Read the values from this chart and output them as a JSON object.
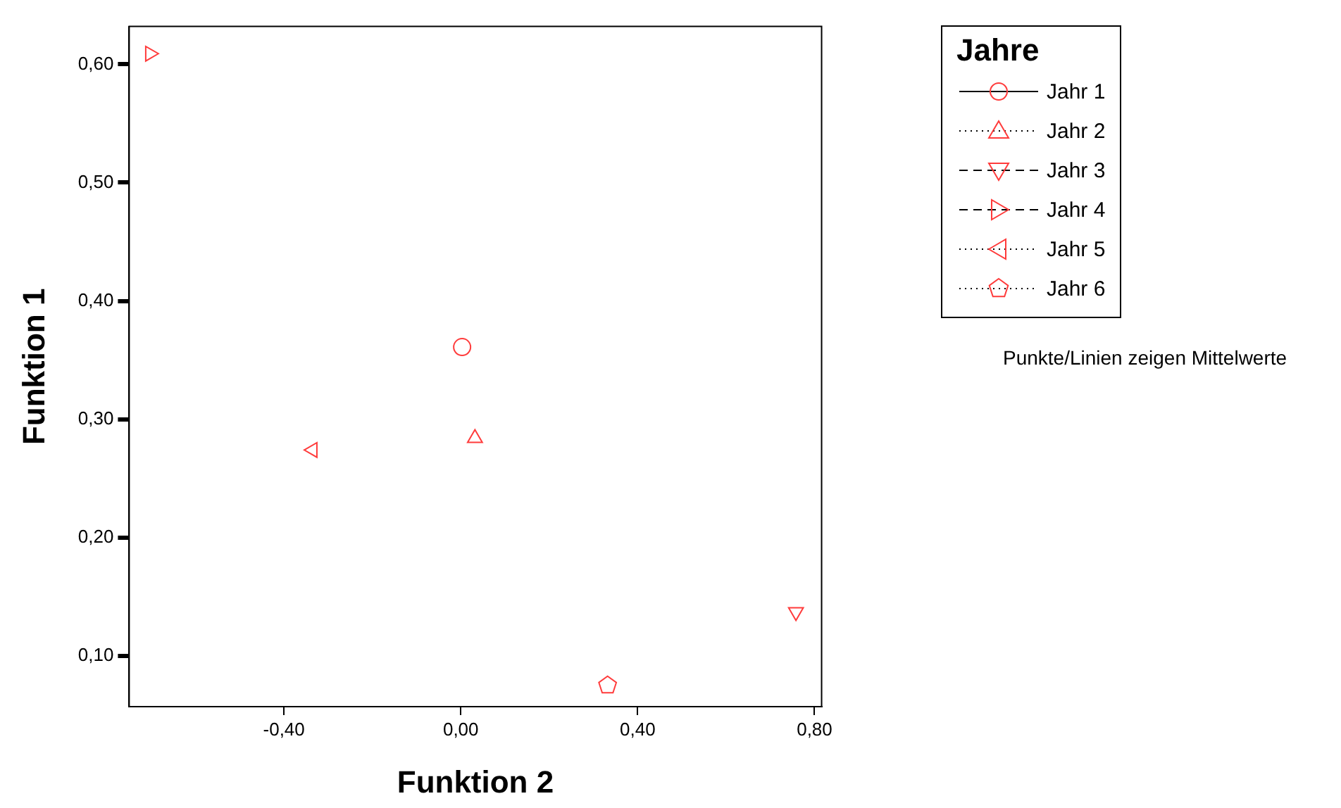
{
  "chart_data": {
    "type": "scatter",
    "xlabel": "Funktion 2",
    "ylabel": "Funktion 1",
    "legend_title": "Jahre",
    "legend": "right",
    "grid": false,
    "xlim": [
      -0.75,
      0.816
    ],
    "ylim": [
      0.057,
      0.632
    ],
    "xticks": [
      {
        "value": -0.4,
        "label": "-0,40"
      },
      {
        "value": 0,
        "label": "0,00"
      },
      {
        "value": 0.4,
        "label": "0,40"
      },
      {
        "value": 0.8,
        "label": "0,80"
      }
    ],
    "yticks": [
      {
        "value": 0.1,
        "label": "0,10"
      },
      {
        "value": 0.2,
        "label": "0,20"
      },
      {
        "value": 0.3,
        "label": "0,30"
      },
      {
        "value": 0.4,
        "label": "0,40"
      },
      {
        "value": 0.5,
        "label": "0,50"
      },
      {
        "value": 0.6,
        "label": "0,60"
      }
    ],
    "annotations": [
      "Punkte/Linien zeigen Mittelwerte"
    ],
    "series": [
      {
        "name": "Jahr 1",
        "color": "#ff3b3b",
        "marker": "circle",
        "line_style": "solid",
        "x": [
          0.003
        ],
        "values": [
          0.361
        ]
      },
      {
        "name": "Jahr 2",
        "color": "#ff3b3b",
        "marker": "triangle",
        "line_style": "dotted",
        "x": [
          0.032
        ],
        "values": [
          0.284
        ]
      },
      {
        "name": "Jahr 3",
        "color": "#ff3b3b",
        "marker": "triangle-down",
        "line_style": "dashed",
        "x": [
          0.758
        ],
        "values": [
          0.137
        ]
      },
      {
        "name": "Jahr 4",
        "color": "#ff3b3b",
        "marker": "triangle-right",
        "line_style": "dashed",
        "x": [
          -0.703
        ],
        "values": [
          0.609
        ]
      },
      {
        "name": "Jahr 5",
        "color": "#ff3b3b",
        "marker": "triangle-left",
        "line_style": "dotted",
        "x": [
          -0.335
        ],
        "values": [
          0.274
        ]
      },
      {
        "name": "Jahr 6",
        "color": "#ff3b3b",
        "line_style": "dotted",
        "x": [
          0.332
        ],
        "values": [
          0.075
        ]
      }
    ]
  }
}
